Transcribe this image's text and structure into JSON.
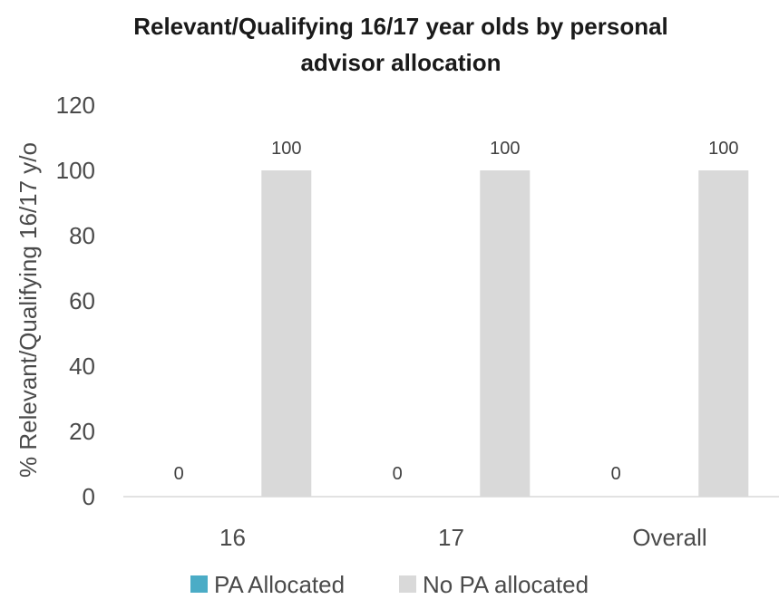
{
  "chart_data": {
    "type": "bar",
    "title": "Relevant/Qualifying 16/17 year olds by personal advisor allocation",
    "title_lines": [
      "Relevant/Qualifying 16/17 year olds by personal",
      "advisor allocation"
    ],
    "ylabel": "% Relevant/Qualifying 16/17 y/o",
    "xlabel": "",
    "ylim": [
      0,
      120
    ],
    "yticks": [
      0,
      20,
      40,
      60,
      80,
      100,
      120
    ],
    "categories": [
      "16",
      "17",
      "Overall"
    ],
    "series": [
      {
        "name": "PA Allocated",
        "values": [
          0,
          0,
          0
        ],
        "color": "#4bacc6"
      },
      {
        "name": "No PA allocated",
        "values": [
          100,
          100,
          100
        ],
        "color": "#d9d9d9"
      }
    ],
    "data_labels": true,
    "grid": false,
    "legend_position": "bottom"
  }
}
